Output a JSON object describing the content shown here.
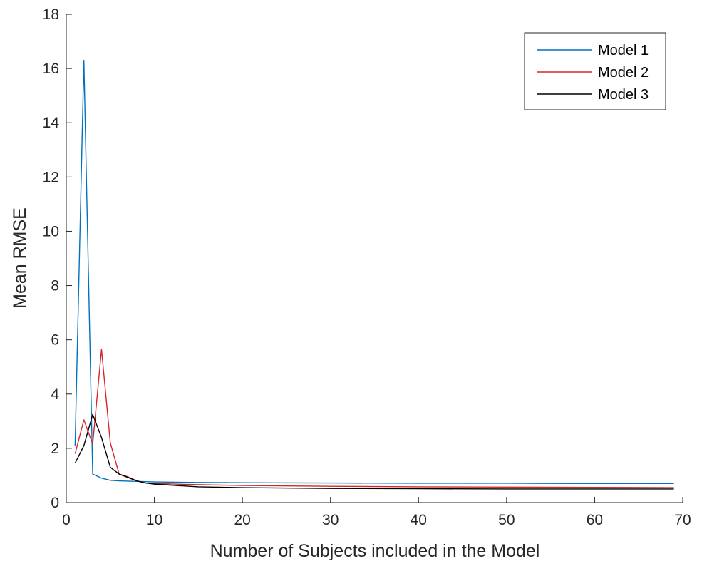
{
  "chart_data": {
    "type": "line",
    "title": "",
    "xlabel": "Number of Subjects included in the Model",
    "ylabel": "Mean RMSE",
    "xlim": [
      0,
      70
    ],
    "ylim": [
      0,
      18
    ],
    "xticks": [
      0,
      10,
      20,
      30,
      40,
      50,
      60,
      70
    ],
    "yticks": [
      0,
      2,
      4,
      6,
      8,
      10,
      12,
      14,
      16,
      18
    ],
    "grid": false,
    "legend_position": "top-right",
    "series": [
      {
        "name": "Model 1",
        "color": "#0072BD",
        "points": [
          [
            1,
            2.1
          ],
          [
            2,
            16.3
          ],
          [
            3,
            1.05
          ],
          [
            4,
            0.9
          ],
          [
            5,
            0.82
          ],
          [
            6,
            0.8
          ],
          [
            8,
            0.78
          ],
          [
            10,
            0.76
          ],
          [
            15,
            0.74
          ],
          [
            20,
            0.73
          ],
          [
            30,
            0.72
          ],
          [
            40,
            0.71
          ],
          [
            50,
            0.71
          ],
          [
            60,
            0.7
          ],
          [
            69,
            0.7
          ]
        ]
      },
      {
        "name": "Model 2",
        "color": "#D62728",
        "points": [
          [
            1,
            1.8
          ],
          [
            2,
            3.05
          ],
          [
            3,
            2.15
          ],
          [
            4,
            5.65
          ],
          [
            5,
            2.2
          ],
          [
            6,
            1.05
          ],
          [
            7,
            0.95
          ],
          [
            8,
            0.8
          ],
          [
            9,
            0.72
          ],
          [
            10,
            0.7
          ],
          [
            15,
            0.66
          ],
          [
            20,
            0.63
          ],
          [
            30,
            0.6
          ],
          [
            40,
            0.58
          ],
          [
            50,
            0.57
          ],
          [
            60,
            0.56
          ],
          [
            69,
            0.55
          ]
        ]
      },
      {
        "name": "Model 3",
        "color": "#000000",
        "points": [
          [
            1,
            1.45
          ],
          [
            2,
            2.1
          ],
          [
            3,
            3.25
          ],
          [
            4,
            2.4
          ],
          [
            5,
            1.3
          ],
          [
            6,
            1.05
          ],
          [
            8,
            0.8
          ],
          [
            9,
            0.72
          ],
          [
            10,
            0.68
          ],
          [
            15,
            0.58
          ],
          [
            20,
            0.55
          ],
          [
            30,
            0.52
          ],
          [
            40,
            0.51
          ],
          [
            50,
            0.5
          ],
          [
            60,
            0.5
          ],
          [
            69,
            0.5
          ]
        ]
      }
    ]
  }
}
